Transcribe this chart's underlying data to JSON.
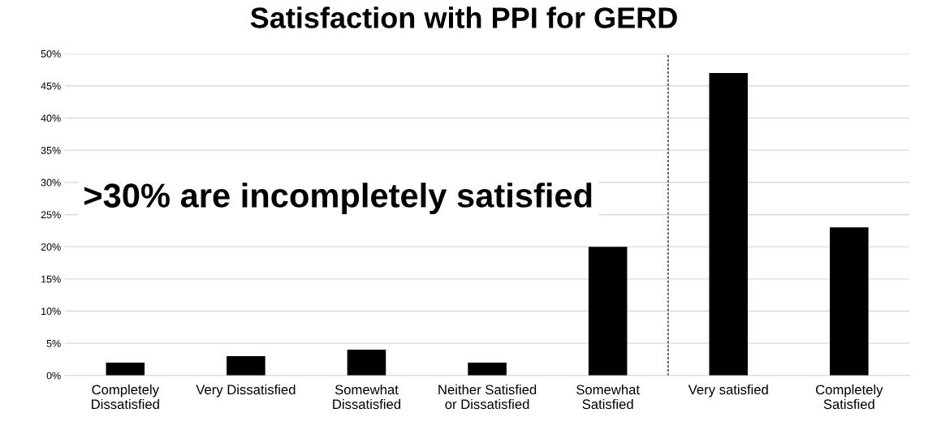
{
  "chart_data": {
    "type": "bar",
    "title": "Satisfaction with PPI for GERD",
    "categories": [
      "Completely\nDissatisfied",
      "Very Dissatisfied",
      "Somewhat\nDissatisfied",
      "Neither Satisfied\nor Dissatisfied",
      "Somewhat\nSatisfied",
      "Very satisfied",
      "Completely\nSatisfied"
    ],
    "values": [
      2,
      3,
      4,
      2,
      20,
      47,
      23
    ],
    "color": "#000000",
    "ylim": [
      0,
      50
    ],
    "yticks": [
      {
        "value": 0,
        "label": "0%"
      },
      {
        "value": 5,
        "label": "5%"
      },
      {
        "value": 10,
        "label": "10%"
      },
      {
        "value": 15,
        "label": "15%"
      },
      {
        "value": 20,
        "label": "20%"
      },
      {
        "value": 25,
        "label": "25%"
      },
      {
        "value": 30,
        "label": "30%"
      },
      {
        "value": 35,
        "label": "35%"
      },
      {
        "value": 40,
        "label": "40%"
      },
      {
        "value": 45,
        "label": "45%"
      },
      {
        "value": 50,
        "label": "50%"
      }
    ],
    "grid": "y",
    "annotations": [
      ">30% are incompletely satisfied"
    ]
  }
}
